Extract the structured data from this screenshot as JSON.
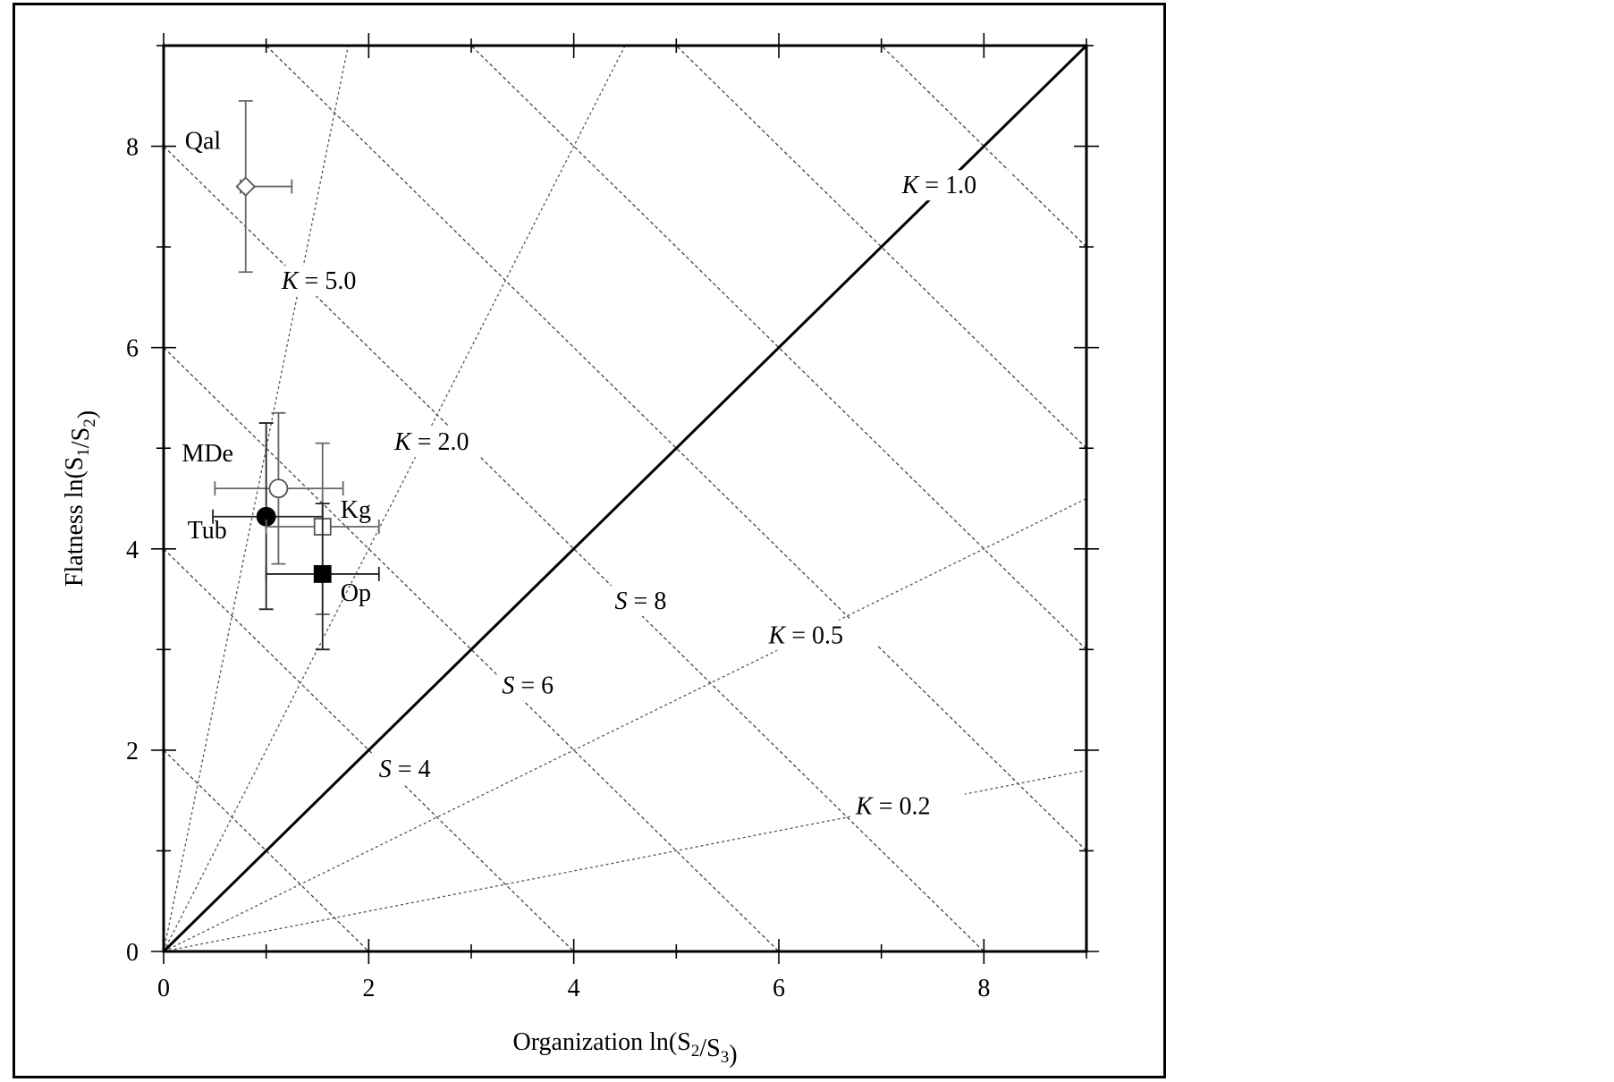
{
  "chart_data": {
    "type": "scatter",
    "title": "",
    "xlabel": "Organization ln(S₂/S₃)",
    "ylabel": "Flatness ln(S₁/S₂)",
    "xlim": [
      0,
      9
    ],
    "ylim": [
      0,
      9
    ],
    "x_ticks": [
      "0",
      "2",
      "4",
      "6",
      "8"
    ],
    "y_ticks": [
      "0",
      "2",
      "4",
      "6",
      "8"
    ],
    "grid": false,
    "points": [
      {
        "label": "Qal",
        "x": 0.8,
        "y": 7.6,
        "xerr": [
          0.75,
          1.25
        ],
        "yerr": [
          6.75,
          8.45
        ],
        "marker": "diamond-open"
      },
      {
        "label": "MDe",
        "x": 1.12,
        "y": 4.6,
        "xerr": [
          0.5,
          1.75
        ],
        "yerr": [
          3.85,
          5.35
        ],
        "marker": "circle-open"
      },
      {
        "label": "Tub",
        "x": 1.0,
        "y": 4.32,
        "xerr": [
          0.48,
          1.55
        ],
        "yerr": [
          3.4,
          5.25
        ],
        "marker": "circle-filled"
      },
      {
        "label": "Kg",
        "x": 1.55,
        "y": 4.22,
        "xerr": [
          1.0,
          2.1
        ],
        "yerr": [
          3.35,
          5.05
        ],
        "marker": "square-open"
      },
      {
        "label": "Op",
        "x": 1.55,
        "y": 3.75,
        "xerr": [
          1.0,
          2.1
        ],
        "yerr": [
          3.0,
          4.45
        ],
        "marker": "square-filled"
      }
    ],
    "k_lines": [
      {
        "label": "K = 5.0",
        "K": 5.0
      },
      {
        "label": "K = 2.0",
        "K": 2.0
      },
      {
        "label": "K = 1.0",
        "K": 1.0
      },
      {
        "label": "K = 0.5",
        "K": 0.5
      },
      {
        "label": "K = 0.2",
        "K": 0.2
      }
    ],
    "s_lines": [
      {
        "label": "",
        "S": 2
      },
      {
        "label": "S = 4",
        "S": 4
      },
      {
        "label": "S = 6",
        "S": 6
      },
      {
        "label": "S = 8",
        "S": 8
      },
      {
        "label": "",
        "S": 10
      },
      {
        "label": "",
        "S": 12
      },
      {
        "label": "",
        "S": 14
      },
      {
        "label": "",
        "S": 16
      }
    ]
  }
}
